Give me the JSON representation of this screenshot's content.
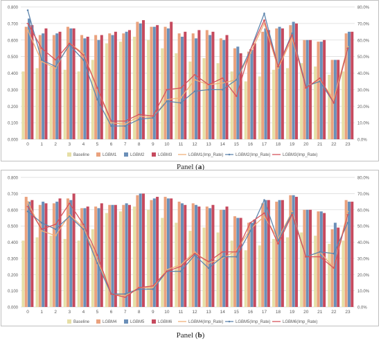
{
  "colors": {
    "baseline": "#e6dfa6",
    "bar1": "#eaa27e",
    "bar2": "#6b8fb8",
    "bar3": "#c64a5e",
    "line1": "#f0b078",
    "line2": "#5f86ad",
    "line3": "#d6545c",
    "grid": "#d9d9d9",
    "text": "#595959"
  },
  "panels": [
    {
      "caption_prefix": "Panel (",
      "caption_letter": "a",
      "caption_suffix": ")",
      "legend": [
        "Baseline",
        "LGBM1",
        "LGBM2",
        "LGBM3",
        "LGBM1(Imp_Rate)",
        "LGBM2(Imp_Rate)",
        "LGBM3(Imp_Rate)"
      ]
    },
    {
      "caption_prefix": "Panel (",
      "caption_letter": "b",
      "caption_suffix": ")",
      "legend": [
        "Baseline",
        "LGBM4",
        "LGBM5",
        "LGBM6",
        "LGBM4(Imp_Rate)",
        "LGBM5(Imp_Rate)",
        "LGBM6(Imp_Rate)"
      ]
    }
  ],
  "chart_data": [
    {
      "type": "bar",
      "categories": [
        "0",
        "1",
        "2",
        "3",
        "4",
        "5",
        "6",
        "7",
        "8",
        "9",
        "10",
        "11",
        "12",
        "13",
        "14",
        "15",
        "16",
        "17",
        "18",
        "19",
        "20",
        "21",
        "22",
        "23"
      ],
      "ylim": [
        0,
        0.8
      ],
      "yticks": [
        "0.000",
        "0.100",
        "0.200",
        "0.300",
        "0.400",
        "0.500",
        "0.600",
        "0.700",
        "0.800"
      ],
      "y2lim": [
        0,
        80
      ],
      "y2ticks": [
        "0.0%",
        "10.0%",
        "20.0%",
        "30.0%",
        "40.0%",
        "50.0%",
        "60.0%",
        "70.0%",
        "80.0%"
      ],
      "series": [
        {
          "name": "Baseline",
          "kind": "bar",
          "values": [
            0.41,
            0.43,
            0.44,
            0.42,
            0.41,
            0.48,
            0.58,
            0.59,
            0.62,
            0.6,
            0.55,
            0.52,
            0.47,
            0.49,
            0.46,
            0.41,
            0.35,
            0.38,
            0.42,
            0.43,
            0.46,
            0.44,
            0.39,
            0.41
          ]
        },
        {
          "name": "LGBM1",
          "kind": "bar",
          "values": [
            0.68,
            0.63,
            0.63,
            0.68,
            0.63,
            0.63,
            0.64,
            0.64,
            0.71,
            0.68,
            0.68,
            0.64,
            0.64,
            0.66,
            0.61,
            0.55,
            0.53,
            0.65,
            0.67,
            0.69,
            0.6,
            0.59,
            0.48,
            0.64
          ]
        },
        {
          "name": "LGBM2",
          "kind": "bar",
          "values": [
            0.73,
            0.64,
            0.64,
            0.67,
            0.61,
            0.6,
            0.63,
            0.65,
            0.7,
            0.68,
            0.67,
            0.62,
            0.61,
            0.63,
            0.6,
            0.56,
            0.54,
            0.67,
            0.68,
            0.71,
            0.6,
            0.59,
            0.48,
            0.65
          ]
        },
        {
          "name": "LGBM3",
          "kind": "bar",
          "values": [
            0.69,
            0.67,
            0.65,
            0.67,
            0.62,
            0.63,
            0.65,
            0.66,
            0.72,
            0.69,
            0.71,
            0.65,
            0.66,
            0.65,
            0.63,
            0.52,
            0.58,
            0.66,
            0.67,
            0.7,
            0.6,
            0.6,
            0.48,
            0.65
          ]
        },
        {
          "name": "LGBM1(Imp_Rate)",
          "kind": "line",
          "values": [
            66.0,
            47.0,
            43.0,
            58.0,
            52.0,
            31.0,
            10.0,
            9.0,
            14.0,
            13.0,
            24.0,
            25.0,
            36.0,
            33.0,
            34.0,
            36.0,
            52.0,
            70.0,
            43.0,
            61.0,
            32.0,
            36.0,
            24.0,
            56.0
          ]
        },
        {
          "name": "LGBM2(Imp_Rate)",
          "kind": "line",
          "values": [
            78.0,
            48.0,
            44.0,
            57.0,
            48.0,
            24.0,
            8.0,
            8.0,
            12.0,
            13.0,
            23.0,
            22.0,
            29.0,
            30.0,
            30.0,
            36.0,
            54.0,
            76.0,
            44.0,
            64.0,
            32.0,
            35.0,
            22.0,
            55.0
          ]
        },
        {
          "name": "LGBM3(Imp_Rate)",
          "kind": "line",
          "values": [
            70.0,
            55.0,
            48.0,
            58.0,
            51.0,
            31.0,
            11.0,
            11.0,
            15.0,
            14.0,
            30.0,
            31.0,
            39.0,
            33.0,
            37.0,
            26.0,
            54.0,
            72.0,
            44.0,
            63.0,
            31.0,
            37.0,
            22.0,
            55.0
          ]
        }
      ]
    },
    {
      "type": "bar",
      "categories": [
        "0",
        "1",
        "2",
        "3",
        "4",
        "5",
        "6",
        "7",
        "8",
        "9",
        "10",
        "11",
        "12",
        "13",
        "14",
        "15",
        "16",
        "17",
        "18",
        "19",
        "20",
        "21",
        "22",
        "23"
      ],
      "ylim": [
        0,
        0.8
      ],
      "yticks": [
        "0.000",
        "0.100",
        "0.200",
        "0.300",
        "0.400",
        "0.500",
        "0.600",
        "0.700",
        "0.800"
      ],
      "y2lim": [
        0,
        80
      ],
      "y2ticks": [
        "0.0%",
        "10.0%",
        "20.0%",
        "30.0%",
        "40.0%",
        "50.0%",
        "60.0%",
        "70.0%",
        "80.0%"
      ],
      "series": [
        {
          "name": "Baseline",
          "kind": "bar",
          "values": [
            0.41,
            0.43,
            0.44,
            0.42,
            0.41,
            0.48,
            0.58,
            0.59,
            0.62,
            0.6,
            0.55,
            0.52,
            0.47,
            0.49,
            0.46,
            0.41,
            0.35,
            0.38,
            0.42,
            0.43,
            0.46,
            0.44,
            0.39,
            0.41
          ]
        },
        {
          "name": "LGBM4",
          "kind": "bar",
          "values": [
            0.68,
            0.63,
            0.64,
            0.67,
            0.61,
            0.62,
            0.63,
            0.63,
            0.69,
            0.66,
            0.68,
            0.65,
            0.64,
            0.62,
            0.6,
            0.56,
            0.52,
            0.64,
            0.65,
            0.69,
            0.6,
            0.59,
            0.48,
            0.66
          ]
        },
        {
          "name": "LGBM5",
          "kind": "bar",
          "values": [
            0.65,
            0.65,
            0.65,
            0.66,
            0.61,
            0.61,
            0.63,
            0.64,
            0.7,
            0.67,
            0.67,
            0.64,
            0.63,
            0.61,
            0.6,
            0.55,
            0.52,
            0.66,
            0.66,
            0.69,
            0.6,
            0.59,
            0.52,
            0.65
          ]
        },
        {
          "name": "LGBM6",
          "kind": "bar",
          "values": [
            0.66,
            0.64,
            0.67,
            0.7,
            0.62,
            0.64,
            0.63,
            0.63,
            0.7,
            0.68,
            0.67,
            0.63,
            0.62,
            0.63,
            0.62,
            0.55,
            0.54,
            0.66,
            0.66,
            0.68,
            0.6,
            0.58,
            0.49,
            0.65
          ]
        },
        {
          "name": "LGBM4(Imp_Rate)",
          "kind": "line",
          "values": [
            65.0,
            47.0,
            44.0,
            57.0,
            49.0,
            29.0,
            8.0,
            7.0,
            12.0,
            12.0,
            23.0,
            26.0,
            34.0,
            27.0,
            30.0,
            35.0,
            48.0,
            56.0,
            42.0,
            59.0,
            31.0,
            34.0,
            24.0,
            59.0
          ]
        },
        {
          "name": "LGBM5(Imp_Rate)",
          "kind": "line",
          "values": [
            59.0,
            52.0,
            48.0,
            56.0,
            48.0,
            27.0,
            8.0,
            8.0,
            11.0,
            11.0,
            22.0,
            22.0,
            32.0,
            24.0,
            31.0,
            31.0,
            47.0,
            66.0,
            41.0,
            58.0,
            31.0,
            34.0,
            33.0,
            52.0
          ]
        },
        {
          "name": "LGBM6(Imp_Rate)",
          "kind": "line",
          "values": [
            62.0,
            48.0,
            51.0,
            64.0,
            51.0,
            32.0,
            8.0,
            6.0,
            12.0,
            13.0,
            22.0,
            25.0,
            33.0,
            28.0,
            34.0,
            34.0,
            52.0,
            58.0,
            39.0,
            57.0,
            31.0,
            31.0,
            24.0,
            57.0
          ]
        }
      ]
    }
  ]
}
